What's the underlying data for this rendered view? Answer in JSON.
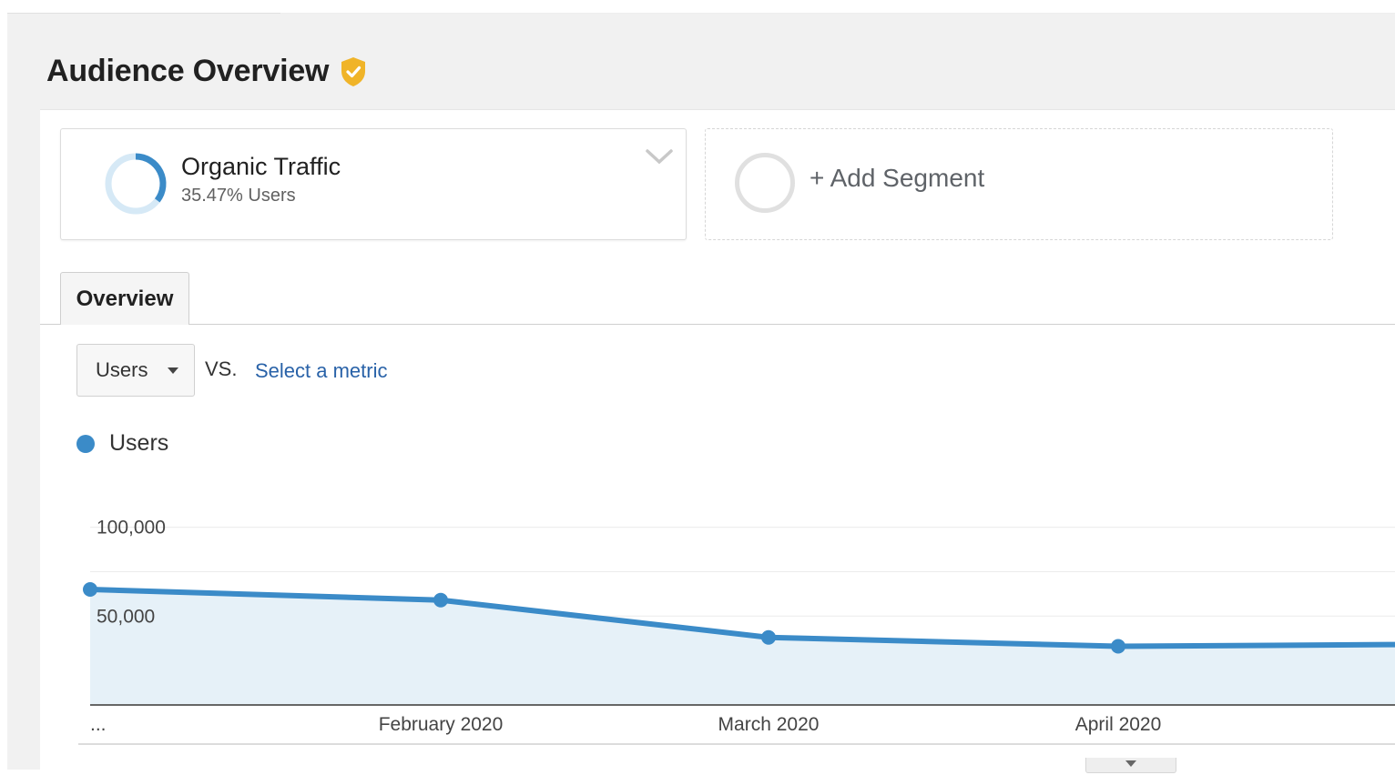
{
  "header": {
    "title": "Audience Overview",
    "verified_icon": "shield-check-icon",
    "verified_color": "#f0b429"
  },
  "segments": {
    "active": {
      "name": "Organic Traffic",
      "share": "35.47% Users",
      "share_fraction": 0.3547,
      "ring_color": "#3b8bc8"
    },
    "add_label": "+ Add Segment"
  },
  "tabs": [
    {
      "label": "Overview",
      "active": true
    }
  ],
  "metric": {
    "selected": "Users",
    "vs_label": "VS.",
    "select_link": "Select a metric"
  },
  "legend": {
    "label": "Users",
    "color": "#3b8bc8"
  },
  "chart_data": {
    "type": "area",
    "y_ticks": [
      "100,000",
      "50,000"
    ],
    "ylim": [
      0,
      130000
    ],
    "x_labels": [
      "...",
      "February 2020",
      "March 2020",
      "April 2020"
    ],
    "series": [
      {
        "name": "Users",
        "color": "#3b8bc8",
        "fill": "#e6f1f8",
        "points": [
          {
            "x": "...",
            "y": 65000
          },
          {
            "x": "February 2020",
            "y": 59000
          },
          {
            "x": "March 2020",
            "y": 38000
          },
          {
            "x": "April 2020",
            "y": 33000
          },
          {
            "x": "",
            "y": 34000
          }
        ]
      }
    ],
    "grid": true
  }
}
